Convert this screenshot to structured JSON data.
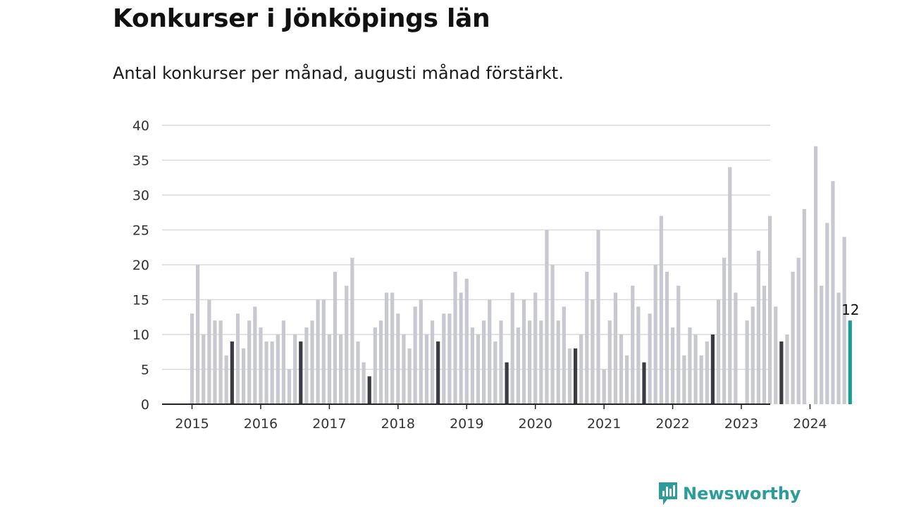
{
  "header": {
    "title": "Konkurser i Jönköpings län",
    "subtitle": "Antal konkurser per månad, augusti månad förstärkt."
  },
  "brand": {
    "name": "Newsworthy",
    "color": "#2a9d9a"
  },
  "colors": {
    "bar": "#c8c8d0",
    "august": "#3b3b46",
    "latest": "#1a9e93",
    "grid": "#d9d9df",
    "axis": "#222222"
  },
  "chart_data": {
    "type": "bar",
    "x_start": "2015-01",
    "x_ticks": [
      "2015",
      "2016",
      "2017",
      "2018",
      "2019",
      "2020",
      "2021",
      "2022",
      "2023",
      "2024"
    ],
    "y_ticks": [
      0,
      5,
      10,
      15,
      20,
      25,
      30,
      35,
      40
    ],
    "ylim": [
      0,
      40
    ],
    "grid": true,
    "highlight_month": "08",
    "last_label": "12",
    "values": [
      13,
      20,
      10,
      15,
      12,
      12,
      7,
      9,
      13,
      8,
      12,
      14,
      11,
      9,
      9,
      10,
      12,
      5,
      10,
      9,
      11,
      12,
      15,
      15,
      10,
      19,
      10,
      17,
      21,
      9,
      6,
      4,
      11,
      12,
      16,
      16,
      13,
      10,
      8,
      14,
      15,
      10,
      12,
      9,
      13,
      13,
      19,
      16,
      18,
      11,
      10,
      12,
      15,
      9,
      12,
      6,
      16,
      11,
      15,
      12,
      16,
      12,
      25,
      20,
      12,
      14,
      8,
      8,
      10,
      19,
      15,
      25,
      5,
      12,
      16,
      10,
      7,
      17,
      14,
      6,
      13,
      20,
      27,
      19,
      11,
      17,
      7,
      11,
      10,
      7,
      9,
      10,
      15,
      21,
      34,
      16,
      0,
      12,
      14,
      22,
      17,
      27,
      14,
      9,
      10,
      19,
      21,
      28,
      0,
      37,
      17,
      26,
      32,
      16,
      24,
      12
    ]
  }
}
